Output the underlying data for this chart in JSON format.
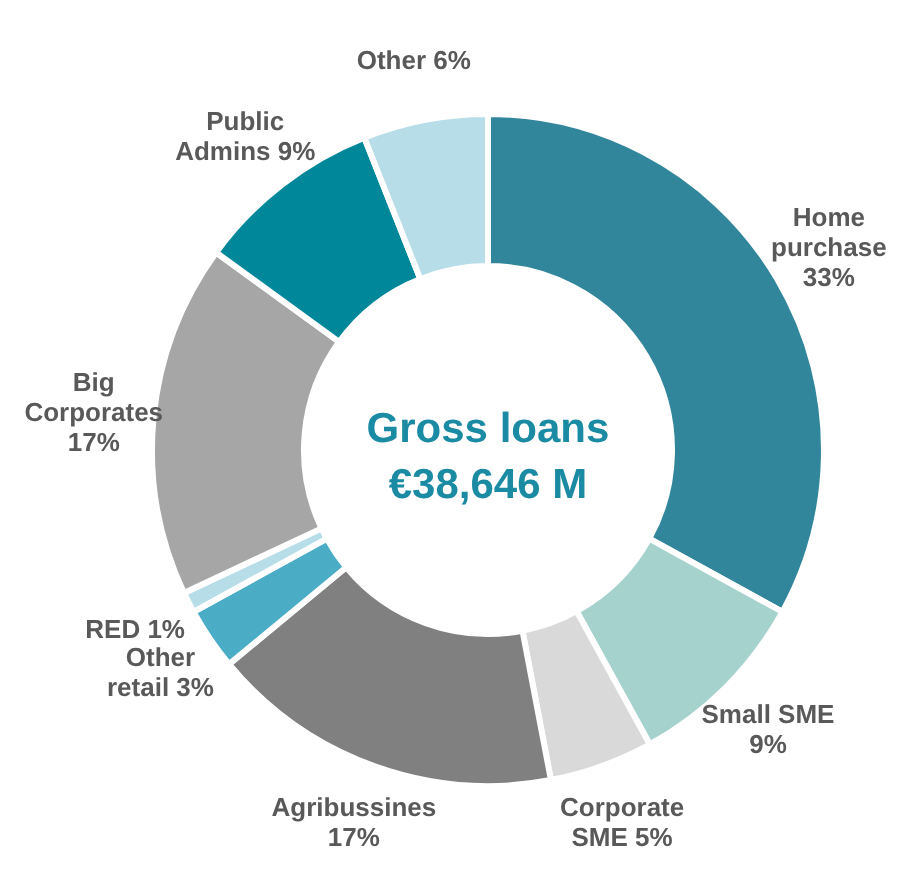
{
  "chart_data": {
    "type": "donut",
    "title": "Gross loans",
    "subtitle": "€38,646 M",
    "categories": [
      "Home purchase",
      "Small SME",
      "Corporate SME",
      "Agribussines",
      "Other retail",
      "RED",
      "Big Corporates",
      "Public Admins",
      "Other"
    ],
    "values": [
      33,
      9,
      5,
      17,
      3,
      1,
      17,
      9,
      6
    ],
    "value_labels": [
      "33%",
      "9%",
      "5%",
      "17%",
      "3%",
      "1%",
      "17%",
      "9%",
      "6%"
    ],
    "colors": [
      "#31869b",
      "#a5d2cd",
      "#d9d9d9",
      "#808080",
      "#4bacc6",
      "#b7dee8",
      "#a6a6a6",
      "#00879a",
      "#b7dde8"
    ]
  }
}
